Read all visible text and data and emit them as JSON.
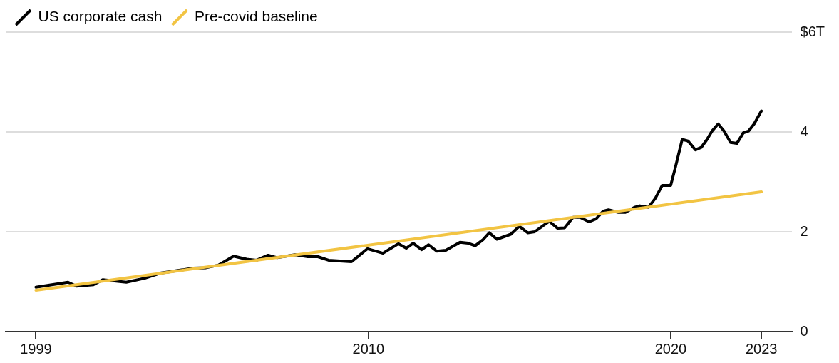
{
  "chart_data": {
    "type": "line",
    "xlim": [
      1998,
      2024
    ],
    "xticks": [
      1999,
      2010,
      2020,
      2023
    ],
    "ylim": [
      0,
      6
    ],
    "yticks": [
      0,
      2,
      4,
      {
        "value": 6,
        "label": "$6T"
      }
    ],
    "grid": "y",
    "legend": "top left",
    "marker": "none",
    "line_style": "solid",
    "series": [
      {
        "name": "US corporate cash",
        "color": "#000000",
        "x": [
          1999.0,
          2000.06,
          2000.34,
          2000.9,
          2001.21,
          2001.99,
          2002.6,
          2003.11,
          2004.2,
          2004.63,
          2005.03,
          2005.54,
          2005.97,
          2006.3,
          2006.68,
          2006.98,
          2007.57,
          2008.0,
          2008.33,
          2008.68,
          2009.44,
          2009.97,
          2010.48,
          2010.99,
          2011.25,
          2011.48,
          2011.76,
          2011.99,
          2012.26,
          2012.56,
          2013.03,
          2013.3,
          2013.53,
          2013.79,
          2014.0,
          2014.25,
          2014.71,
          2014.99,
          2015.27,
          2015.5,
          2015.98,
          2016.26,
          2016.49,
          2016.77,
          2017.0,
          2017.3,
          2017.53,
          2017.76,
          2017.94,
          2018.27,
          2018.5,
          2018.8,
          2018.98,
          2019.26,
          2019.49,
          2019.72,
          2020.0,
          2020.15,
          2020.38,
          2020.57,
          2020.82,
          2021.01,
          2021.19,
          2021.37,
          2021.57,
          2021.76,
          2021.98,
          2022.19,
          2022.4,
          2022.58,
          2022.76,
          2023.0
        ],
        "values": [
          0.89,
          0.99,
          0.91,
          0.94,
          1.04,
          0.99,
          1.07,
          1.17,
          1.27,
          1.28,
          1.33,
          1.51,
          1.45,
          1.43,
          1.53,
          1.48,
          1.54,
          1.5,
          1.5,
          1.43,
          1.4,
          1.66,
          1.57,
          1.76,
          1.67,
          1.77,
          1.64,
          1.74,
          1.61,
          1.63,
          1.79,
          1.77,
          1.72,
          1.84,
          1.98,
          1.85,
          1.95,
          2.11,
          1.98,
          2.0,
          2.21,
          2.07,
          2.08,
          2.29,
          2.29,
          2.2,
          2.26,
          2.41,
          2.44,
          2.39,
          2.39,
          2.49,
          2.52,
          2.49,
          2.67,
          2.93,
          2.93,
          3.28,
          3.85,
          3.82,
          3.64,
          3.69,
          3.84,
          4.02,
          4.16,
          4.02,
          3.79,
          3.77,
          3.98,
          4.02,
          4.16,
          4.42
        ]
      },
      {
        "name": "Pre-covid baseline",
        "color": "#f2c443",
        "x": [
          1999.0,
          2023.0
        ],
        "values": [
          0.83,
          2.8
        ]
      }
    ]
  }
}
